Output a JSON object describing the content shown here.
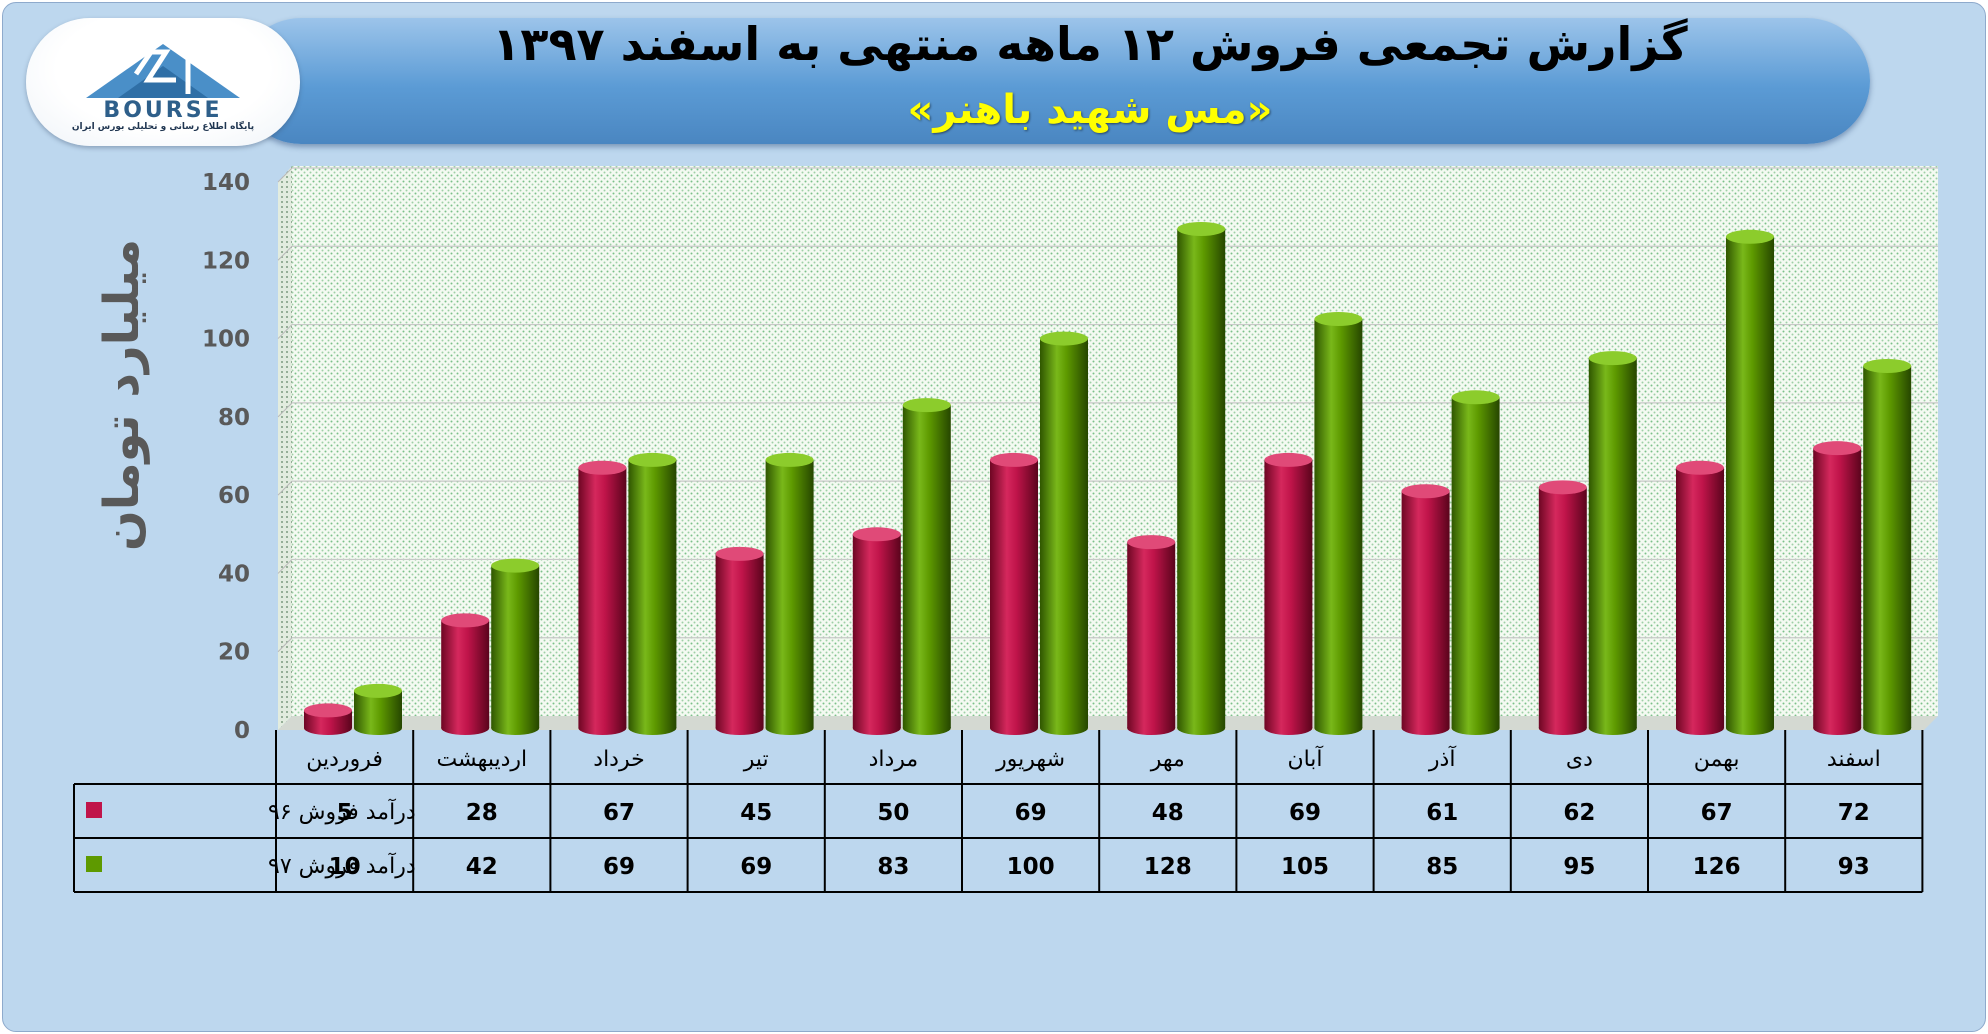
{
  "header": {
    "title": "گزارش تجمعی فروش ۱۲ ماهه منتهی به اسفند ۱۳۹۷",
    "subtitle": "«مس شهید باهنر»"
  },
  "logo": {
    "text": "BOURSE",
    "tagline": "پایگاه اطلاع رسانی و تحلیلی بورس ایران"
  },
  "chart_data": {
    "type": "bar",
    "ylabel": "میلیارد تومان",
    "ylim": [
      0,
      140
    ],
    "yticks": [
      0,
      20,
      40,
      60,
      80,
      100,
      120,
      140
    ],
    "categories": [
      "فروردین",
      "اردیبهشت",
      "خرداد",
      "تیر",
      "مرداد",
      "شهریور",
      "مهر",
      "آبان",
      "آذر",
      "دی",
      "بهمن",
      "اسفند"
    ],
    "series": [
      {
        "name": "درآمد فروش ۹۶",
        "color": "#c0144a",
        "values": [
          5,
          28,
          67,
          45,
          50,
          69,
          48,
          69,
          61,
          62,
          67,
          72
        ]
      },
      {
        "name": "درآمد فروش ۹۷",
        "color": "#5e9a00",
        "values": [
          10,
          42,
          69,
          69,
          83,
          100,
          128,
          105,
          85,
          95,
          126,
          93
        ]
      }
    ],
    "grid": true,
    "legend": "data-table"
  }
}
